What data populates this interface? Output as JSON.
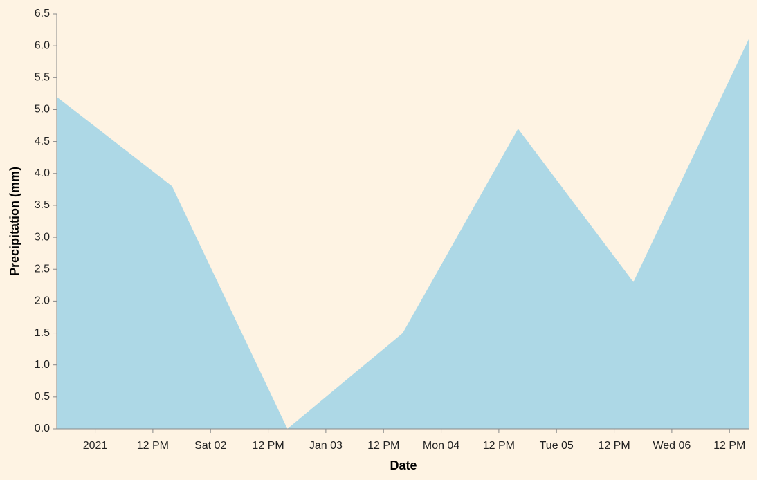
{
  "chart_data": {
    "type": "area",
    "x_label": "Date",
    "y_label": "Precipitation (mm)",
    "x": [
      "2020-12-31T16:00",
      "2021-01-01T16:00",
      "2021-01-02T16:00",
      "2021-01-03T16:00",
      "2021-01-04T16:00",
      "2021-01-05T16:00",
      "2021-01-06T16:00"
    ],
    "values": [
      5.2,
      3.8,
      0,
      1.5,
      4.7,
      2.3,
      6.1
    ],
    "color": "#add8e6",
    "xlim": [
      "2020-12-31T16:00",
      "2021-01-06T16:00"
    ],
    "xticks": [
      {
        "value": "2021-01-01T00:00",
        "label": "2021"
      },
      {
        "value": "2021-01-01T12:00",
        "label": "12 PM"
      },
      {
        "value": "2021-01-02T00:00",
        "label": "Sat 02"
      },
      {
        "value": "2021-01-02T12:00",
        "label": "12 PM"
      },
      {
        "value": "2021-01-03T00:00",
        "label": "Jan 03"
      },
      {
        "value": "2021-01-03T12:00",
        "label": "12 PM"
      },
      {
        "value": "2021-01-04T00:00",
        "label": "Mon 04"
      },
      {
        "value": "2021-01-04T12:00",
        "label": "12 PM"
      },
      {
        "value": "2021-01-05T00:00",
        "label": "Tue 05"
      },
      {
        "value": "2021-01-05T12:00",
        "label": "12 PM"
      },
      {
        "value": "2021-01-06T00:00",
        "label": "Wed 06"
      },
      {
        "value": "2021-01-06T12:00",
        "label": "12 PM"
      }
    ],
    "ylim": [
      0,
      6.5
    ],
    "yticks": [
      {
        "value": 0,
        "label": "0.0"
      },
      0.5,
      {
        "value": 1,
        "label": "1.0"
      },
      1.5,
      {
        "value": 2,
        "label": "2.0"
      },
      2.5,
      {
        "value": 3,
        "label": "3.0"
      },
      3.5,
      {
        "value": 4,
        "label": "4.0"
      },
      4.5,
      {
        "value": 5,
        "label": "5.0"
      },
      5.5,
      {
        "value": 6,
        "label": "6.0"
      },
      6.5
    ],
    "grid": false
  }
}
